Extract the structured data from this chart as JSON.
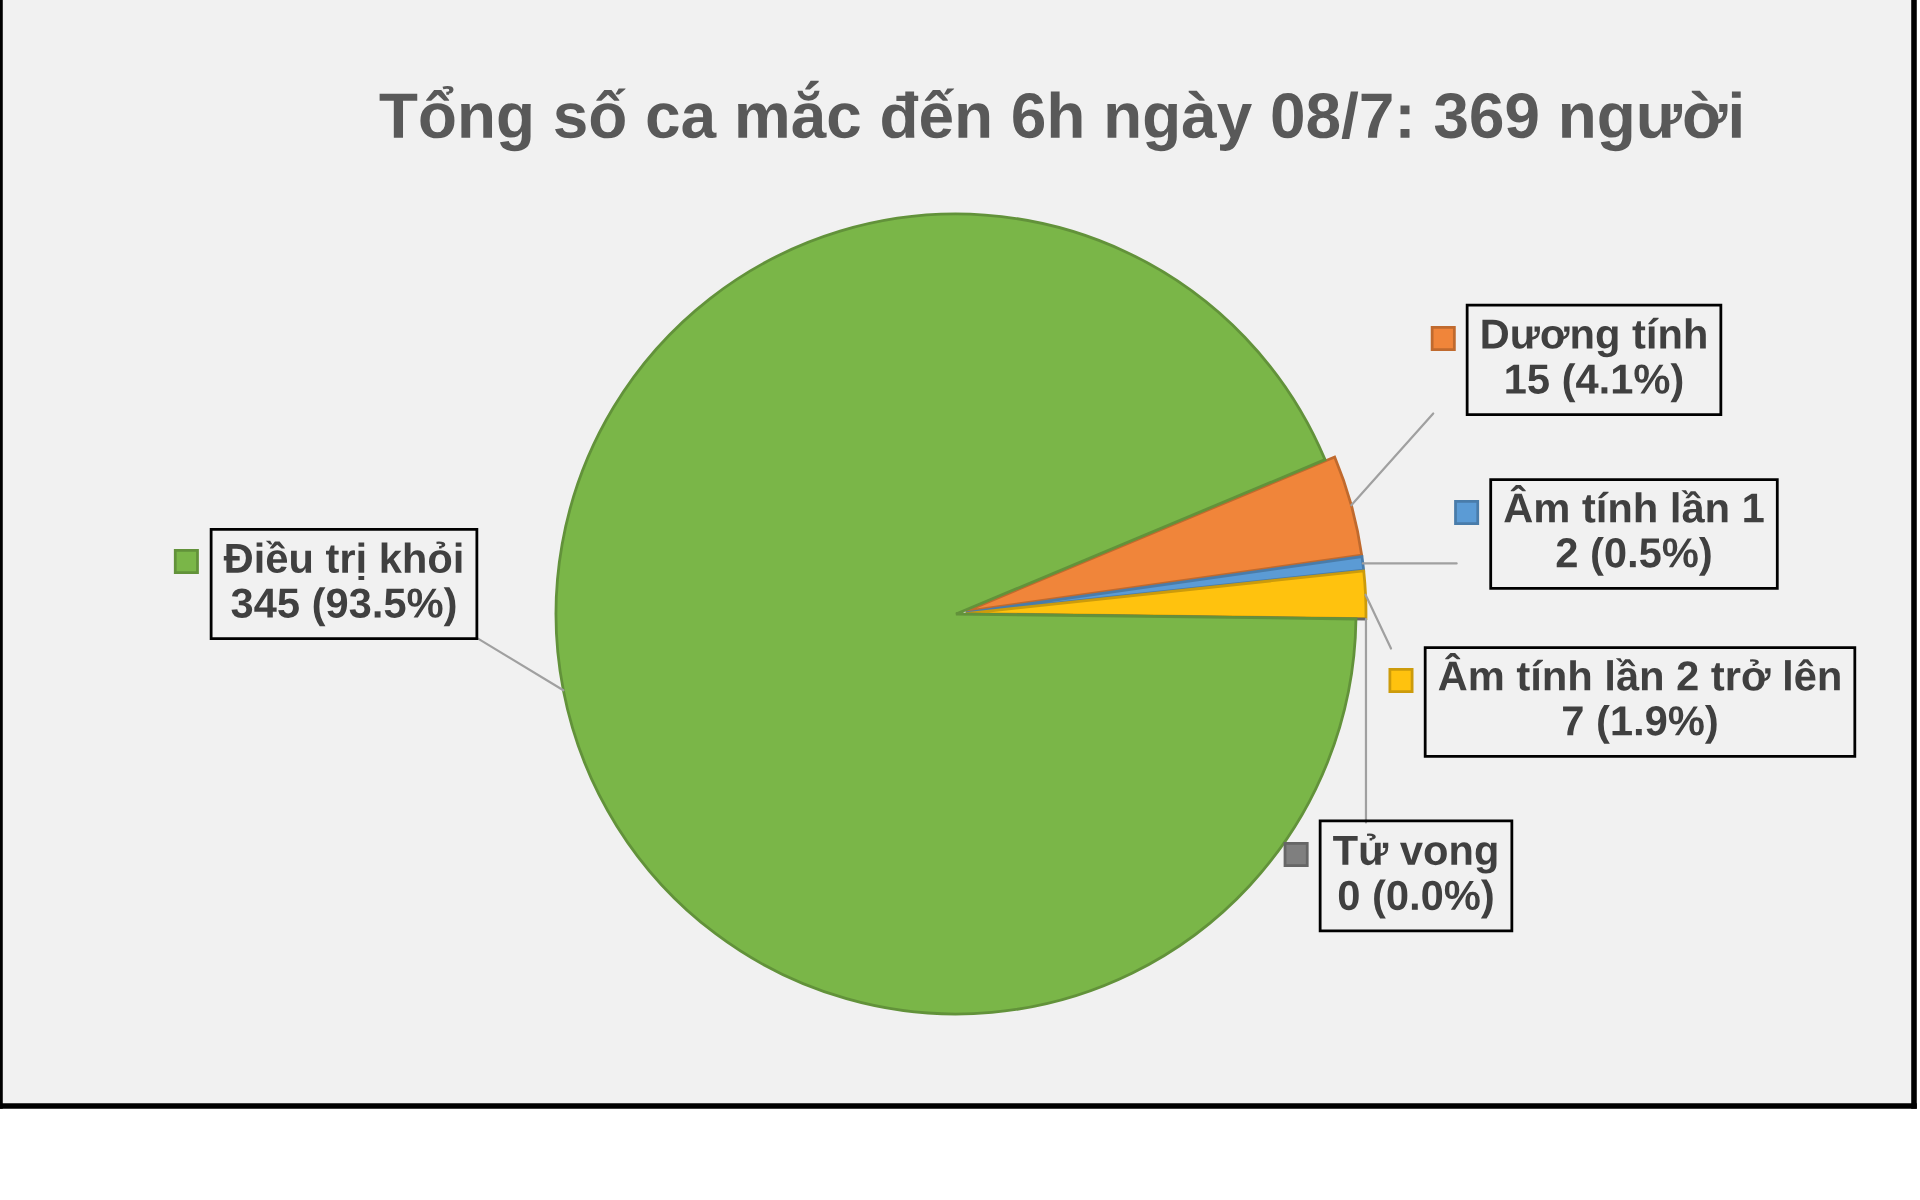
{
  "chart_data": {
    "type": "pie",
    "title": "Tổng số ca mắc đến 6h ngày 08/7: 369 người",
    "categories": [
      "Dương tính",
      "Âm tính lần 1",
      "Âm tính lần 2 trở lên",
      "Tử vong",
      "Điều trị khỏi"
    ],
    "values": [
      15,
      2,
      7,
      0,
      345
    ],
    "value_labels": [
      "15 (4.1%)",
      "2 (0.5%)",
      "7 (1.9%)",
      "0 (0.0%)",
      "345 (93.5%)"
    ],
    "colors": [
      "#f0853a",
      "#5b9bd5",
      "#ffc20e",
      "#7f7f7f",
      "#7ab648"
    ],
    "legend": "right"
  }
}
